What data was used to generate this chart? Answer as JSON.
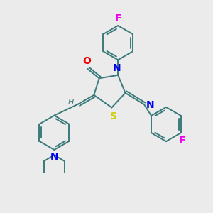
{
  "bg_color": "#ebebeb",
  "bond_color": "#3a7a7a",
  "atom_colors": {
    "N": "#0000ee",
    "O": "#ee0000",
    "S": "#cccc00",
    "F": "#ee00ee",
    "H": "#3a7a7a",
    "C": "#3a7a7a"
  },
  "font_size": 9,
  "linewidth": 1.4
}
